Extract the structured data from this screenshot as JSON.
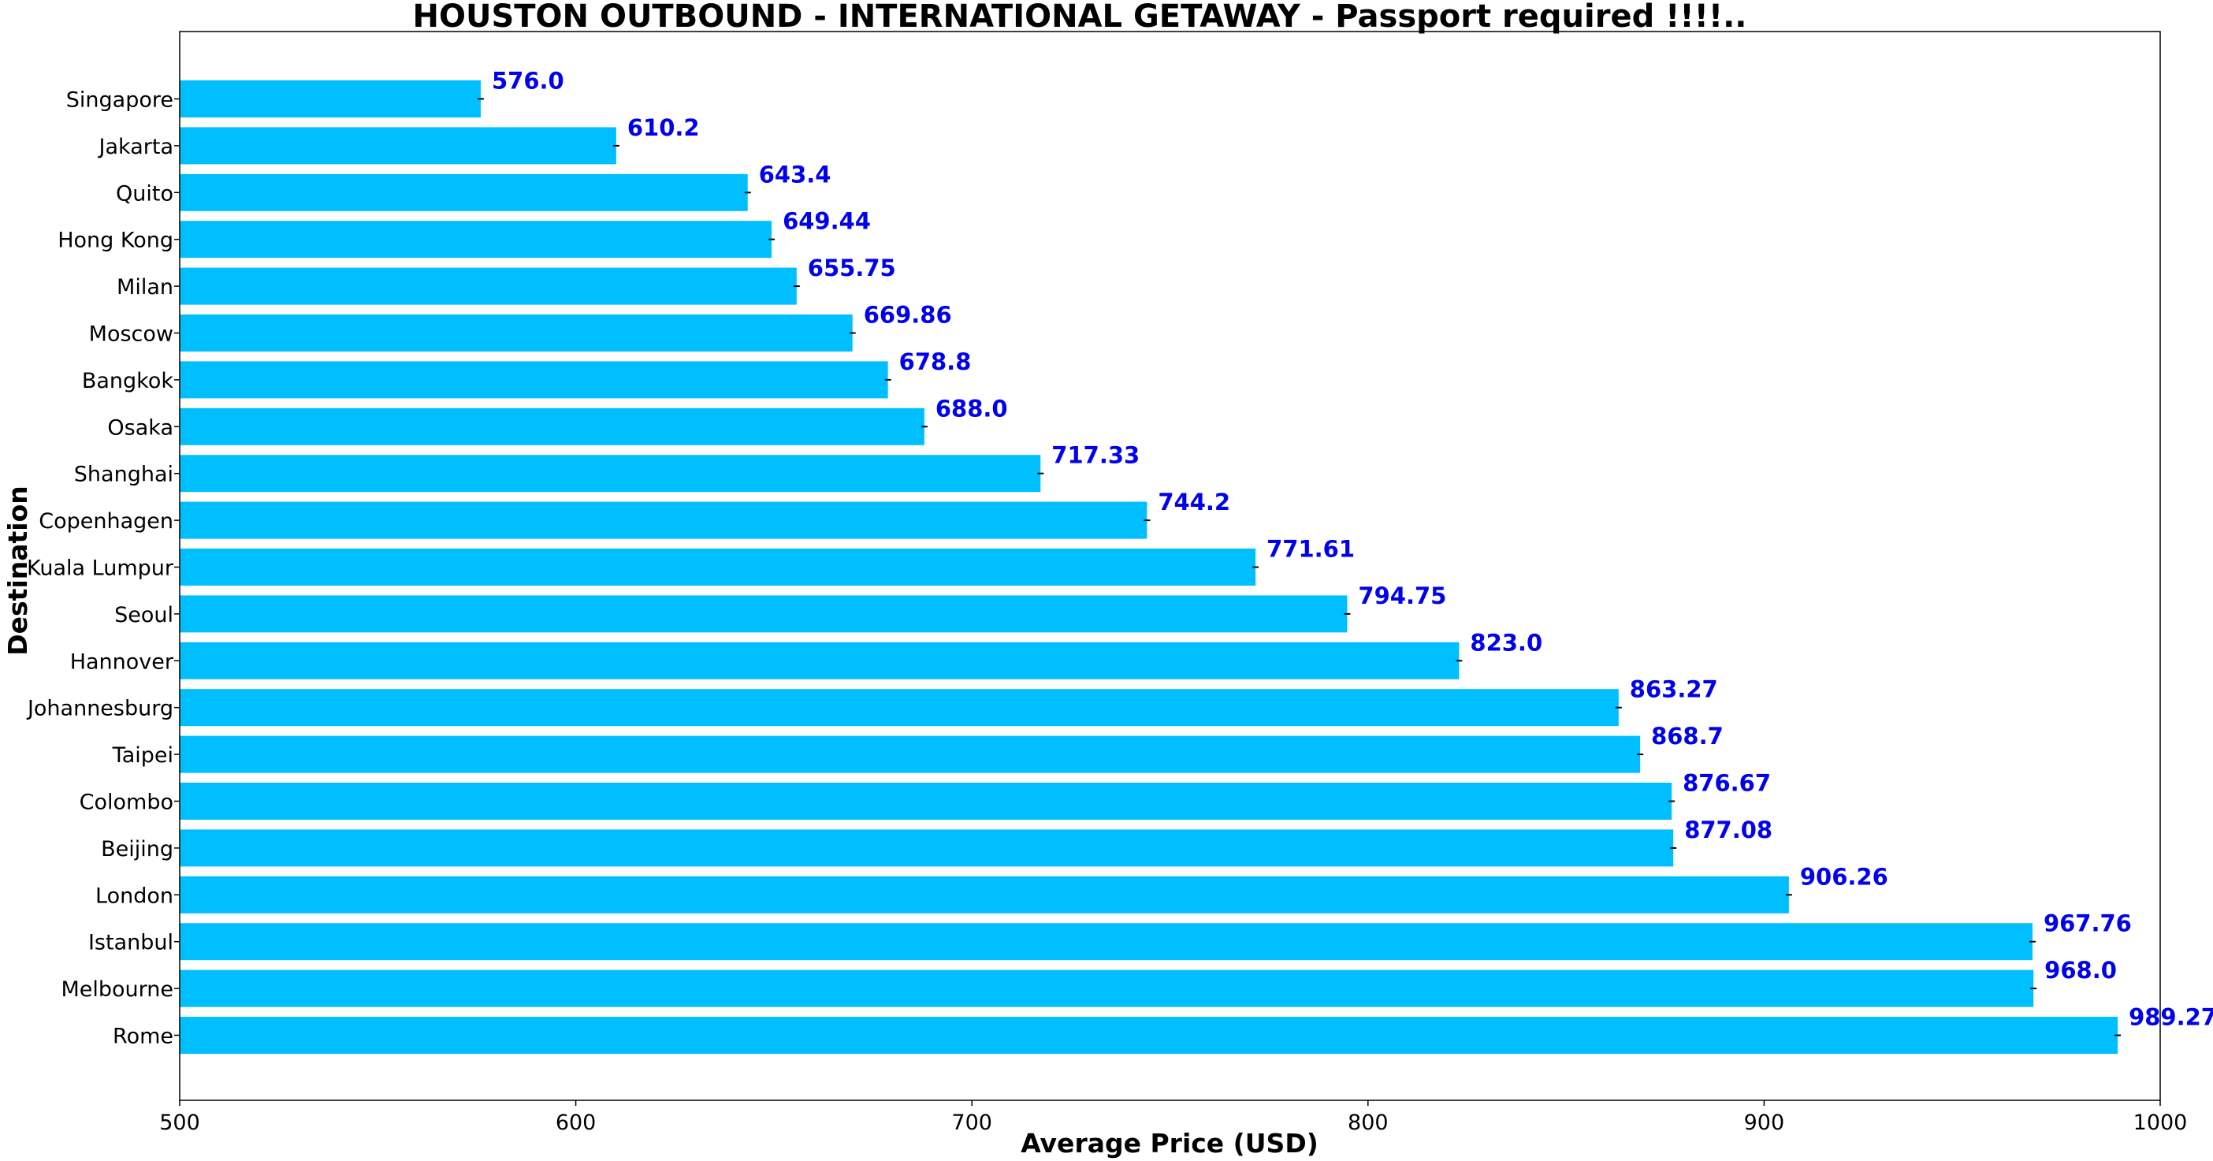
{
  "chart_data": {
    "type": "bar",
    "orientation": "horizontal",
    "title": "HOUSTON OUTBOUND - INTERNATIONAL GETAWAY - Passport required !!!!..",
    "xlabel": "Average Price (USD)",
    "ylabel": "Destination",
    "xlim": [
      500,
      1000
    ],
    "xticks": [
      "500",
      "600",
      "700",
      "800",
      "900",
      "1000"
    ],
    "grid": false,
    "categories": [
      "Singapore",
      "Jakarta",
      "Quito",
      "Hong Kong",
      "Milan",
      "Moscow",
      "Bangkok",
      "Osaka",
      "Shanghai",
      "Copenhagen",
      "Kuala Lumpur",
      "Seoul",
      "Hannover",
      "Johannesburg",
      "Taipei",
      "Colombo",
      "Beijing",
      "London",
      "Istanbul",
      "Melbourne",
      "Rome"
    ],
    "values": [
      576.0,
      610.2,
      643.4,
      649.44,
      655.75,
      669.86,
      678.8,
      688.0,
      717.33,
      744.2,
      771.61,
      794.75,
      823.0,
      863.27,
      868.7,
      876.67,
      877.08,
      906.26,
      967.76,
      968.0,
      989.27
    ],
    "value_labels": [
      "576.0",
      "610.2",
      "643.4",
      "649.44",
      "655.75",
      "669.86",
      "678.8",
      "688.0",
      "717.33",
      "744.2",
      "771.61",
      "794.75",
      "823.0",
      "863.27",
      "868.7",
      "876.67",
      "877.08",
      "906.26",
      "967.76",
      "968.0",
      "989.27"
    ],
    "colors": {
      "bar": "#00bfff",
      "value_label": "#0000ee",
      "error_bar": "#000000",
      "axis": "#000000"
    }
  }
}
